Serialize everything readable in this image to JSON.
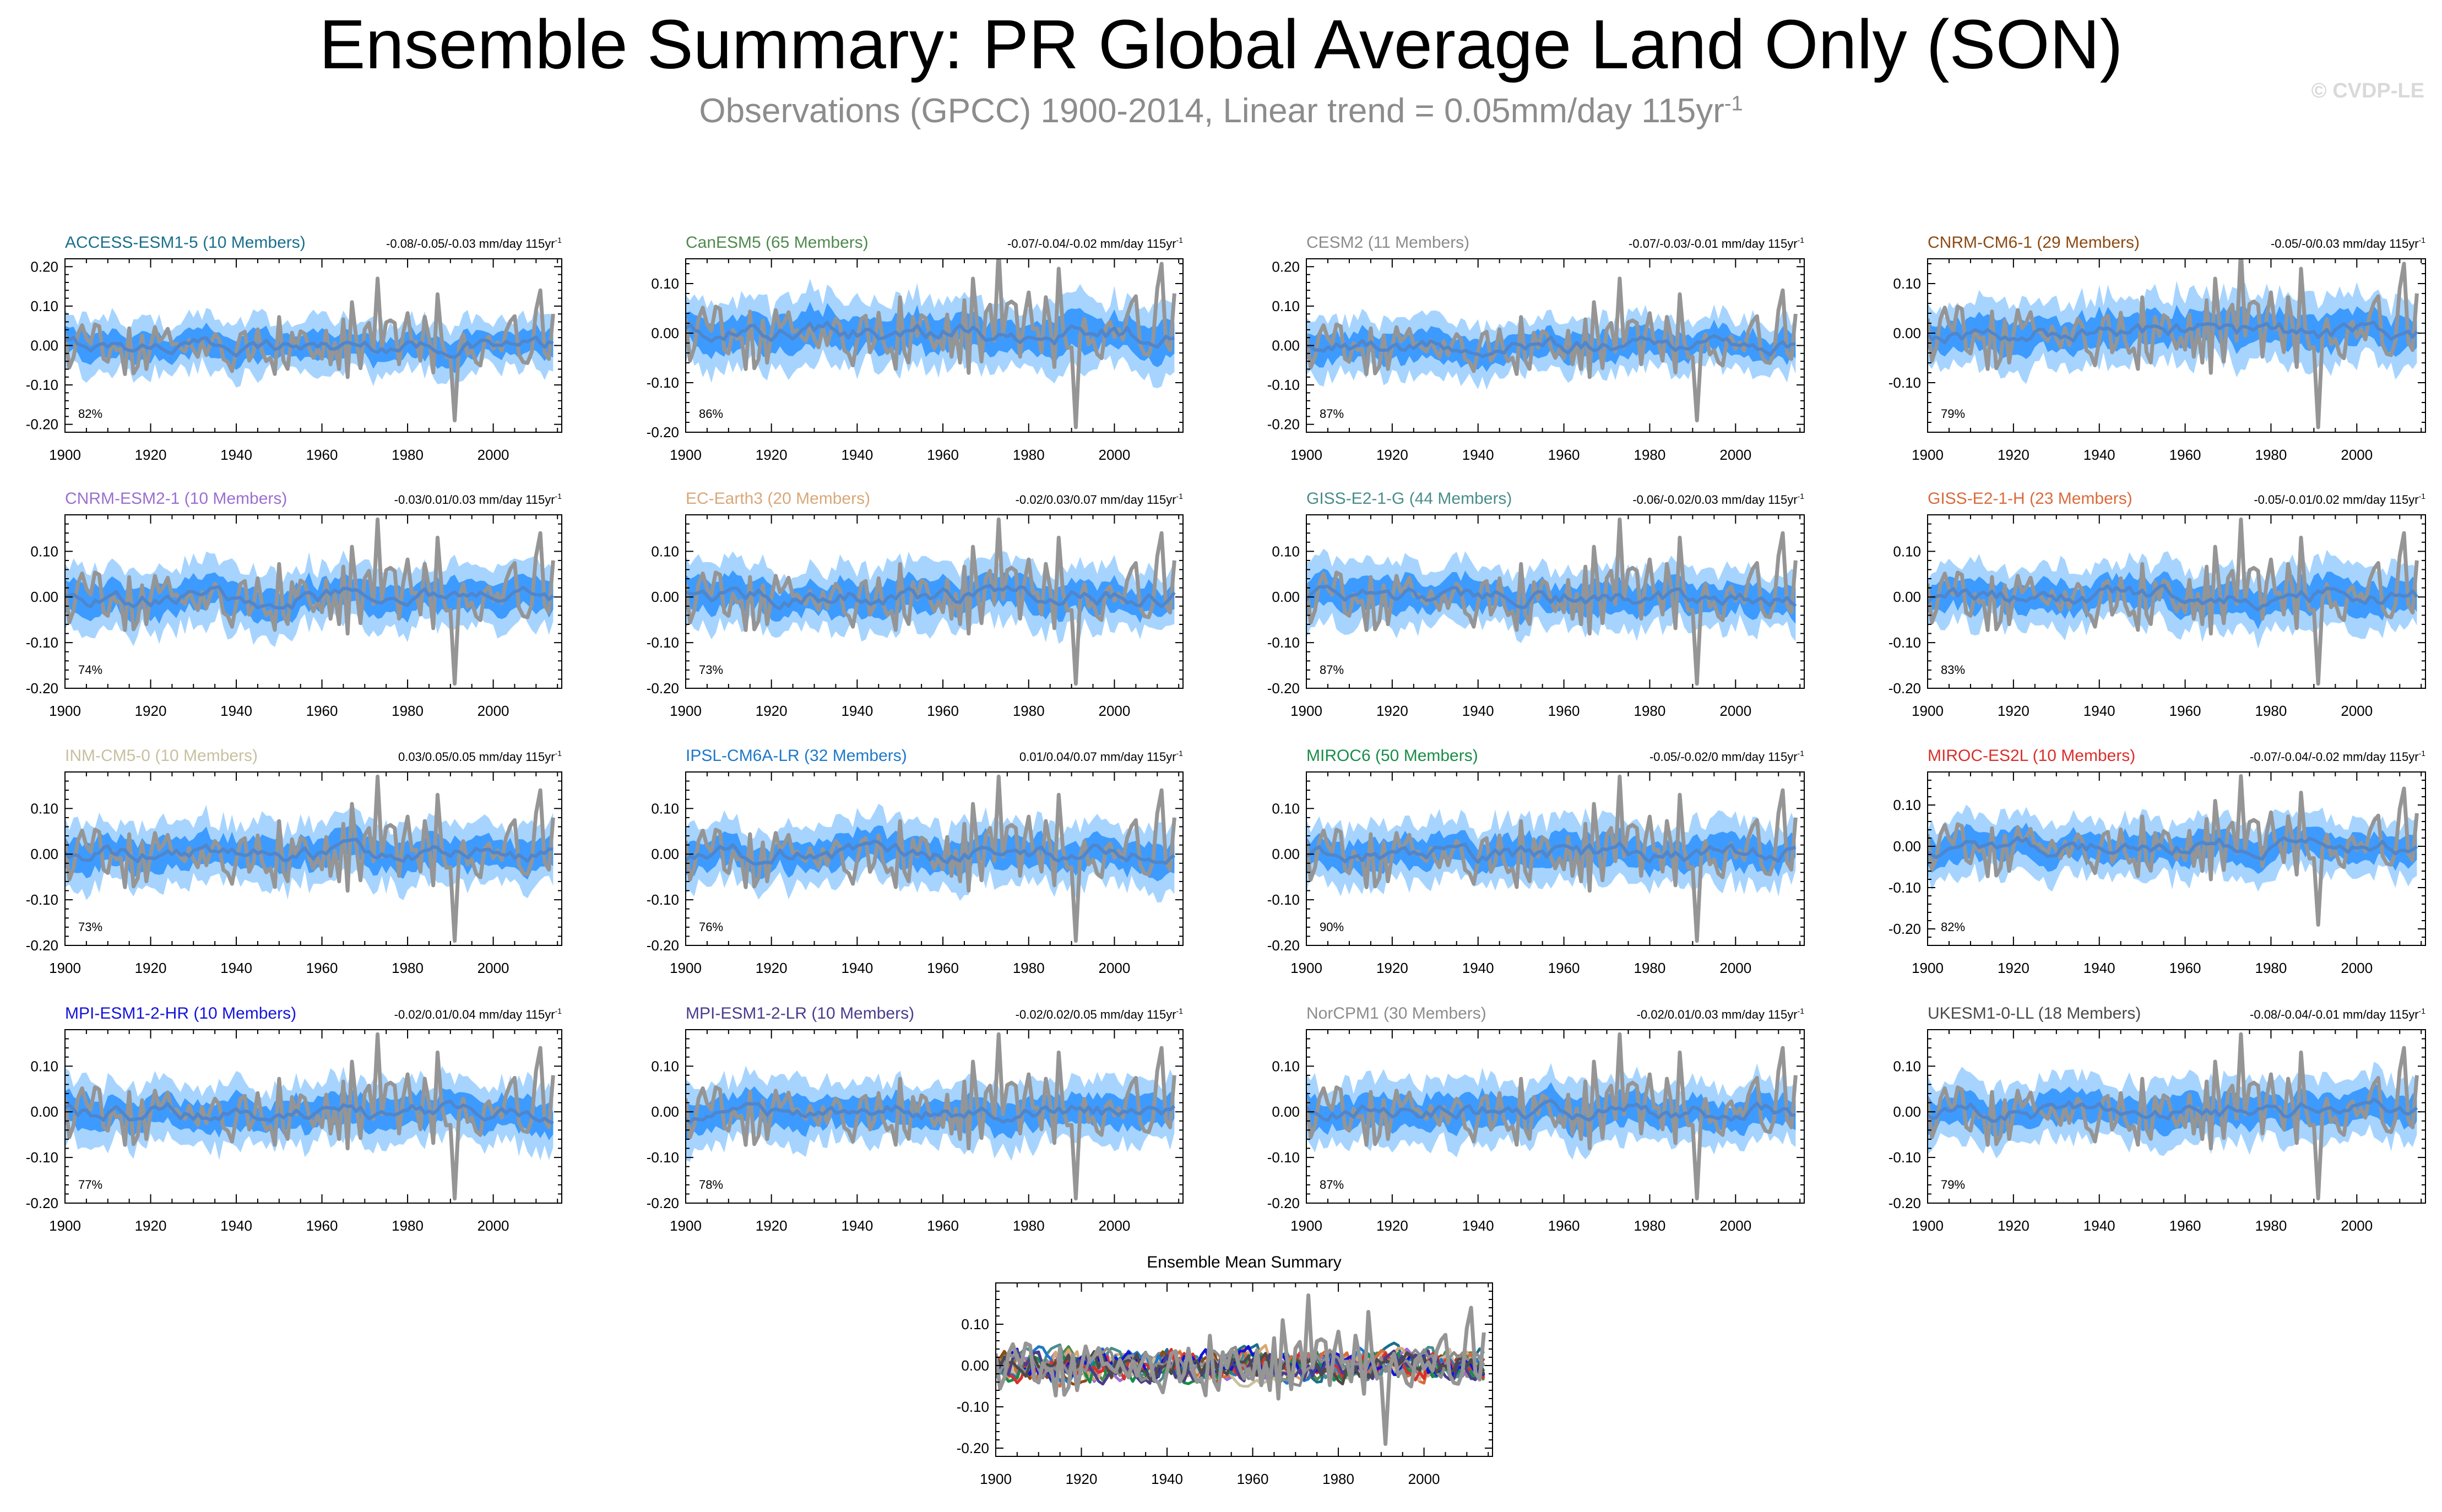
{
  "title": "Ensemble Summary: PR Global Average Land Only (SON)",
  "subtitle": {
    "main": "Observations (GPCC) 1900-2014, Linear trend = 0.05mm/day 115yr",
    "sup": "-1"
  },
  "copyright": "© CVDP-LE",
  "colors": {
    "band_outer": "#a6d4ff",
    "band_inner": "#3d9bff",
    "ensemble_mean": "#4f86cc",
    "observations": "#959595",
    "axis": "#000000"
  },
  "chart_data": [
    {
      "type": "line",
      "name": "ACCESS-ESM1-5",
      "title": "ACCESS-ESM1-5 (10 Members)",
      "title_color": "#1a6f8c",
      "trend": "-0.08/-0.05/-0.03 mm/day 115yr",
      "trend_sup": "-1",
      "percent": "82%",
      "ylim": [
        -0.22,
        0.22
      ],
      "yticks": [
        -0.2,
        -0.1,
        0.0,
        0.1,
        0.2
      ],
      "ytick_labels": [
        "-0.20",
        "-0.10",
        "0.00",
        "0.10",
        "0.20"
      ],
      "xlim": [
        1900,
        2016
      ],
      "xticks": [
        1900,
        1920,
        1940,
        1960,
        1980,
        2000
      ],
      "xtick_labels": [
        "1900",
        "1920",
        "1940",
        "1960",
        "1980",
        "2000"
      ],
      "series": [
        "ensemble 10-90% range",
        "ensemble 25-75% range",
        "ensemble mean",
        "observations"
      ]
    },
    {
      "type": "line",
      "name": "CanESM5",
      "title": "CanESM5 (65 Members)",
      "title_color": "#4f8a4f",
      "trend": "-0.07/-0.04/-0.02 mm/day 115yr",
      "trend_sup": "-1",
      "percent": "86%",
      "ylim": [
        -0.2,
        0.15
      ],
      "yticks": [
        -0.2,
        -0.1,
        0.0,
        0.1
      ],
      "ytick_labels": [
        "-0.20",
        "-0.10",
        "0.00",
        "0.10"
      ],
      "xlim": [
        1900,
        2016
      ],
      "xticks": [
        1900,
        1920,
        1940,
        1960,
        1980,
        2000
      ],
      "xtick_labels": [
        "1900",
        "1920",
        "1940",
        "1960",
        "1980",
        "2000"
      ],
      "series": [
        "ensemble 10-90% range",
        "ensemble 25-75% range",
        "ensemble mean",
        "observations"
      ]
    },
    {
      "type": "line",
      "name": "CESM2",
      "title": "CESM2 (11 Members)",
      "title_color": "#8c8c8c",
      "trend": "-0.07/-0.03/-0.01 mm/day 115yr",
      "trend_sup": "-1",
      "percent": "87%",
      "ylim": [
        -0.22,
        0.22
      ],
      "yticks": [
        -0.2,
        -0.1,
        0.0,
        0.1,
        0.2
      ],
      "ytick_labels": [
        "-0.20",
        "-0.10",
        "0.00",
        "0.10",
        "0.20"
      ],
      "xlim": [
        1900,
        2016
      ],
      "xticks": [
        1900,
        1920,
        1940,
        1960,
        1980,
        2000
      ],
      "xtick_labels": [
        "1900",
        "1920",
        "1940",
        "1960",
        "1980",
        "2000"
      ],
      "series": [
        "ensemble 10-90% range",
        "ensemble 25-75% range",
        "ensemble mean",
        "observations"
      ]
    },
    {
      "type": "line",
      "name": "CNRM-CM6-1",
      "title": "CNRM-CM6-1 (29 Members)",
      "title_color": "#8c4a14",
      "trend": "-0.05/-0/0.03 mm/day 115yr",
      "trend_sup": "-1",
      "percent": "79%",
      "ylim": [
        -0.2,
        0.15
      ],
      "yticks": [
        -0.1,
        0.0,
        0.1
      ],
      "ytick_labels": [
        "-0.10",
        "0.00",
        "0.10"
      ],
      "xlim": [
        1900,
        2016
      ],
      "xticks": [
        1900,
        1920,
        1940,
        1960,
        1980,
        2000
      ],
      "xtick_labels": [
        "1900",
        "1920",
        "1940",
        "1960",
        "1980",
        "2000"
      ],
      "series": [
        "ensemble 10-90% range",
        "ensemble 25-75% range",
        "ensemble mean",
        "observations"
      ]
    },
    {
      "type": "line",
      "name": "CNRM-ESM2-1",
      "title": "CNRM-ESM2-1 (10 Members)",
      "title_color": "#9b6fd0",
      "trend": "-0.03/0.01/0.03 mm/day 115yr",
      "trend_sup": "-1",
      "percent": "74%",
      "ylim": [
        -0.2,
        0.18
      ],
      "yticks": [
        -0.2,
        -0.1,
        0.0,
        0.1
      ],
      "ytick_labels": [
        "-0.20",
        "-0.10",
        "0.00",
        "0.10"
      ],
      "xlim": [
        1900,
        2016
      ],
      "xticks": [
        1900,
        1920,
        1940,
        1960,
        1980,
        2000
      ],
      "xtick_labels": [
        "1900",
        "1920",
        "1940",
        "1960",
        "1980",
        "2000"
      ],
      "series": [
        "ensemble 10-90% range",
        "ensemble 25-75% range",
        "ensemble mean",
        "observations"
      ]
    },
    {
      "type": "line",
      "name": "EC-Earth3",
      "title": "EC-Earth3 (20 Members)",
      "title_color": "#d9a878",
      "trend": "-0.02/0.03/0.07 mm/day 115yr",
      "trend_sup": "-1",
      "percent": "73%",
      "ylim": [
        -0.2,
        0.18
      ],
      "yticks": [
        -0.2,
        -0.1,
        0.0,
        0.1
      ],
      "ytick_labels": [
        "-0.20",
        "-0.10",
        "0.00",
        "0.10"
      ],
      "xlim": [
        1900,
        2016
      ],
      "xticks": [
        1900,
        1920,
        1940,
        1960,
        1980,
        2000
      ],
      "xtick_labels": [
        "1900",
        "1920",
        "1940",
        "1960",
        "1980",
        "2000"
      ],
      "series": [
        "ensemble 10-90% range",
        "ensemble 25-75% range",
        "ensemble mean",
        "observations"
      ]
    },
    {
      "type": "line",
      "name": "GISS-E2-1-G",
      "title": "GISS-E2-1-G (44 Members)",
      "title_color": "#4a8c8c",
      "trend": "-0.06/-0.02/0.03 mm/day 115yr",
      "trend_sup": "-1",
      "percent": "87%",
      "ylim": [
        -0.2,
        0.18
      ],
      "yticks": [
        -0.2,
        -0.1,
        0.0,
        0.1
      ],
      "ytick_labels": [
        "-0.20",
        "-0.10",
        "0.00",
        "0.10"
      ],
      "xlim": [
        1900,
        2016
      ],
      "xticks": [
        1900,
        1920,
        1940,
        1960,
        1980,
        2000
      ],
      "xtick_labels": [
        "1900",
        "1920",
        "1940",
        "1960",
        "1980",
        "2000"
      ],
      "series": [
        "ensemble 10-90% range",
        "ensemble 25-75% range",
        "ensemble mean",
        "observations"
      ]
    },
    {
      "type": "line",
      "name": "GISS-E2-1-H",
      "title": "GISS-E2-1-H (23 Members)",
      "title_color": "#d96b3c",
      "trend": "-0.05/-0.01/0.02 mm/day 115yr",
      "trend_sup": "-1",
      "percent": "83%",
      "ylim": [
        -0.2,
        0.18
      ],
      "yticks": [
        -0.2,
        -0.1,
        0.0,
        0.1
      ],
      "ytick_labels": [
        "-0.20",
        "-0.10",
        "0.00",
        "0.10"
      ],
      "xlim": [
        1900,
        2016
      ],
      "xticks": [
        1900,
        1920,
        1940,
        1960,
        1980,
        2000
      ],
      "xtick_labels": [
        "1900",
        "1920",
        "1940",
        "1960",
        "1980",
        "2000"
      ],
      "series": [
        "ensemble 10-90% range",
        "ensemble 25-75% range",
        "ensemble mean",
        "observations"
      ]
    },
    {
      "type": "line",
      "name": "INM-CM5-0",
      "title": "INM-CM5-0 (10 Members)",
      "title_color": "#c8c0a0",
      "trend": "0.03/0.05/0.05 mm/day 115yr",
      "trend_sup": "-1",
      "percent": "73%",
      "ylim": [
        -0.2,
        0.18
      ],
      "yticks": [
        -0.2,
        -0.1,
        0.0,
        0.1
      ],
      "ytick_labels": [
        "-0.20",
        "-0.10",
        "0.00",
        "0.10"
      ],
      "xlim": [
        1900,
        2016
      ],
      "xticks": [
        1900,
        1920,
        1940,
        1960,
        1980,
        2000
      ],
      "xtick_labels": [
        "1900",
        "1920",
        "1940",
        "1960",
        "1980",
        "2000"
      ],
      "series": [
        "ensemble 10-90% range",
        "ensemble 25-75% range",
        "ensemble mean",
        "observations"
      ]
    },
    {
      "type": "line",
      "name": "IPSL-CM6A-LR",
      "title": "IPSL-CM6A-LR (32 Members)",
      "title_color": "#1f78c8",
      "trend": "0.01/0.04/0.07 mm/day 115yr",
      "trend_sup": "-1",
      "percent": "76%",
      "ylim": [
        -0.2,
        0.18
      ],
      "yticks": [
        -0.2,
        -0.1,
        0.0,
        0.1
      ],
      "ytick_labels": [
        "-0.20",
        "-0.10",
        "0.00",
        "0.10"
      ],
      "xlim": [
        1900,
        2016
      ],
      "xticks": [
        1900,
        1920,
        1940,
        1960,
        1980,
        2000
      ],
      "xtick_labels": [
        "1900",
        "1920",
        "1940",
        "1960",
        "1980",
        "2000"
      ],
      "series": [
        "ensemble 10-90% range",
        "ensemble 25-75% range",
        "ensemble mean",
        "observations"
      ]
    },
    {
      "type": "line",
      "name": "MIROC6",
      "title": "MIROC6 (50 Members)",
      "title_color": "#1a8c4a",
      "trend": "-0.05/-0.02/0 mm/day 115yr",
      "trend_sup": "-1",
      "percent": "90%",
      "ylim": [
        -0.2,
        0.18
      ],
      "yticks": [
        -0.2,
        -0.1,
        0.0,
        0.1
      ],
      "ytick_labels": [
        "-0.20",
        "-0.10",
        "0.00",
        "0.10"
      ],
      "xlim": [
        1900,
        2016
      ],
      "xticks": [
        1900,
        1920,
        1940,
        1960,
        1980,
        2000
      ],
      "xtick_labels": [
        "1900",
        "1920",
        "1940",
        "1960",
        "1980",
        "2000"
      ],
      "series": [
        "ensemble 10-90% range",
        "ensemble 25-75% range",
        "ensemble mean",
        "observations"
      ]
    },
    {
      "type": "line",
      "name": "MIROC-ES2L",
      "title": "MIROC-ES2L (10 Members)",
      "title_color": "#d9302c",
      "trend": "-0.07/-0.04/-0.02 mm/day 115yr",
      "trend_sup": "-1",
      "percent": "82%",
      "ylim": [
        -0.24,
        0.18
      ],
      "yticks": [
        -0.2,
        -0.1,
        0.0,
        0.1
      ],
      "ytick_labels": [
        "-0.20",
        "-0.10",
        "0.00",
        "0.10"
      ],
      "xlim": [
        1900,
        2016
      ],
      "xticks": [
        1900,
        1920,
        1940,
        1960,
        1980,
        2000
      ],
      "xtick_labels": [
        "1900",
        "1920",
        "1940",
        "1960",
        "1980",
        "2000"
      ],
      "series": [
        "ensemble 10-90% range",
        "ensemble 25-75% range",
        "ensemble mean",
        "observations"
      ]
    },
    {
      "type": "line",
      "name": "MPI-ESM1-2-HR",
      "title": "MPI-ESM1-2-HR (10 Members)",
      "title_color": "#1414d9",
      "trend": "-0.02/0.01/0.04 mm/day 115yr",
      "trend_sup": "-1",
      "percent": "77%",
      "ylim": [
        -0.2,
        0.18
      ],
      "yticks": [
        -0.2,
        -0.1,
        0.0,
        0.1
      ],
      "ytick_labels": [
        "-0.20",
        "-0.10",
        "0.00",
        "0.10"
      ],
      "xlim": [
        1900,
        2016
      ],
      "xticks": [
        1900,
        1920,
        1940,
        1960,
        1980,
        2000
      ],
      "xtick_labels": [
        "1900",
        "1920",
        "1940",
        "1960",
        "1980",
        "2000"
      ],
      "series": [
        "ensemble 10-90% range",
        "ensemble 25-75% range",
        "ensemble mean",
        "observations"
      ]
    },
    {
      "type": "line",
      "name": "MPI-ESM1-2-LR",
      "title": "MPI-ESM1-2-LR (10 Members)",
      "title_color": "#4a3c8c",
      "trend": "-0.02/0.02/0.05 mm/day 115yr",
      "trend_sup": "-1",
      "percent": "78%",
      "ylim": [
        -0.2,
        0.18
      ],
      "yticks": [
        -0.2,
        -0.1,
        0.0,
        0.1
      ],
      "ytick_labels": [
        "-0.20",
        "-0.10",
        "0.00",
        "0.10"
      ],
      "xlim": [
        1900,
        2016
      ],
      "xticks": [
        1900,
        1920,
        1940,
        1960,
        1980,
        2000
      ],
      "xtick_labels": [
        "1900",
        "1920",
        "1940",
        "1960",
        "1980",
        "2000"
      ],
      "series": [
        "ensemble 10-90% range",
        "ensemble 25-75% range",
        "ensemble mean",
        "observations"
      ]
    },
    {
      "type": "line",
      "name": "NorCPM1",
      "title": "NorCPM1 (30 Members)",
      "title_color": "#8c8c8c",
      "trend": "-0.02/0.01/0.03 mm/day 115yr",
      "trend_sup": "-1",
      "percent": "87%",
      "ylim": [
        -0.2,
        0.18
      ],
      "yticks": [
        -0.2,
        -0.1,
        0.0,
        0.1
      ],
      "ytick_labels": [
        "-0.20",
        "-0.10",
        "0.00",
        "0.10"
      ],
      "xlim": [
        1900,
        2016
      ],
      "xticks": [
        1900,
        1920,
        1940,
        1960,
        1980,
        2000
      ],
      "xtick_labels": [
        "1900",
        "1920",
        "1940",
        "1960",
        "1980",
        "2000"
      ],
      "series": [
        "ensemble 10-90% range",
        "ensemble 25-75% range",
        "ensemble mean",
        "observations"
      ]
    },
    {
      "type": "line",
      "name": "UKESM1-0-LL",
      "title": "UKESM1-0-LL (18 Members)",
      "title_color": "#4a4a4a",
      "trend": "-0.08/-0.04/-0.01 mm/day 115yr",
      "trend_sup": "-1",
      "percent": "79%",
      "ylim": [
        -0.2,
        0.18
      ],
      "yticks": [
        -0.2,
        -0.1,
        0.0,
        0.1
      ],
      "ytick_labels": [
        "-0.20",
        "-0.10",
        "0.00",
        "0.10"
      ],
      "xlim": [
        1900,
        2016
      ],
      "xticks": [
        1900,
        1920,
        1940,
        1960,
        1980,
        2000
      ],
      "xtick_labels": [
        "1900",
        "1920",
        "1940",
        "1960",
        "1980",
        "2000"
      ],
      "series": [
        "ensemble 10-90% range",
        "ensemble 25-75% range",
        "ensemble mean",
        "observations"
      ]
    },
    {
      "type": "line",
      "name": "Ensemble Mean Summary",
      "title": "Ensemble Mean Summary",
      "title_color": "#000000",
      "trend": "",
      "trend_sup": "",
      "percent": "",
      "ylim": [
        -0.22,
        0.2
      ],
      "yticks": [
        -0.2,
        -0.1,
        0.0,
        0.1
      ],
      "ytick_labels": [
        "-0.20",
        "-0.10",
        "0.00",
        "0.10"
      ],
      "xlim": [
        1900,
        2016
      ],
      "xticks": [
        1900,
        1920,
        1940,
        1960,
        1980,
        2000
      ],
      "xtick_labels": [
        "1900",
        "1920",
        "1940",
        "1960",
        "1980",
        "2000"
      ],
      "series": [
        "observations",
        "ensemble means of all 16 models (colored by model)"
      ],
      "model_colors": [
        "#1a6f8c",
        "#4f8a4f",
        "#8c8c8c",
        "#8c4a14",
        "#9b6fd0",
        "#d9a878",
        "#4a8c8c",
        "#d96b3c",
        "#c8c0a0",
        "#1f78c8",
        "#1a8c4a",
        "#d9302c",
        "#1414d9",
        "#4a3c8c",
        "#8c8c8c",
        "#4a4a4a"
      ]
    }
  ]
}
